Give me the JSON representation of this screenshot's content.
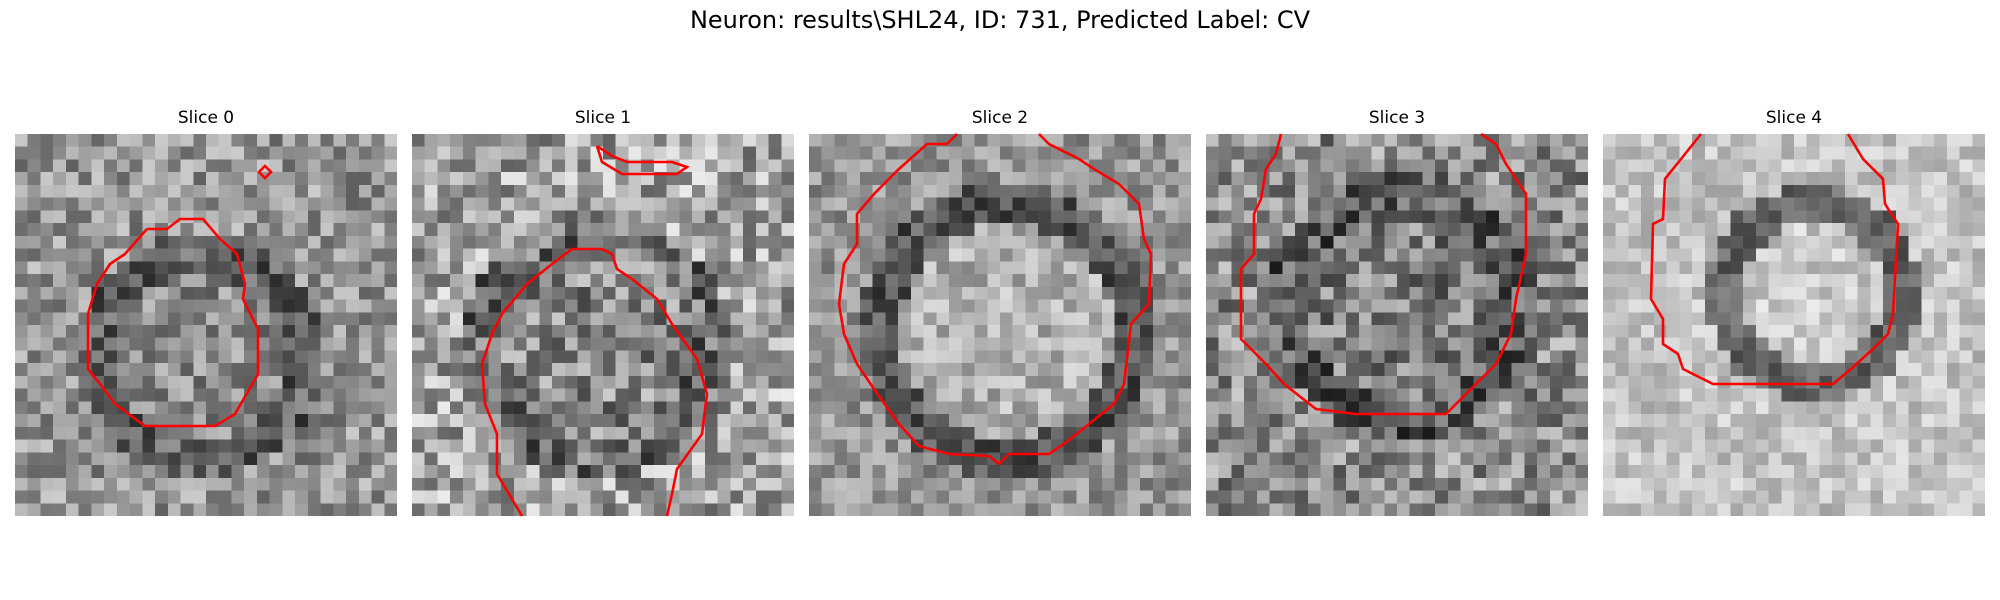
{
  "figure": {
    "title": "Neuron: results\\SHL24, ID: 731, Predicted Label: CV"
  },
  "panels": [
    {
      "title": "Slice 0"
    },
    {
      "title": "Slice 1"
    },
    {
      "title": "Slice 2"
    },
    {
      "title": "Slice 3"
    },
    {
      "title": "Slice 4"
    }
  ],
  "contour_color": "#ff0000"
}
